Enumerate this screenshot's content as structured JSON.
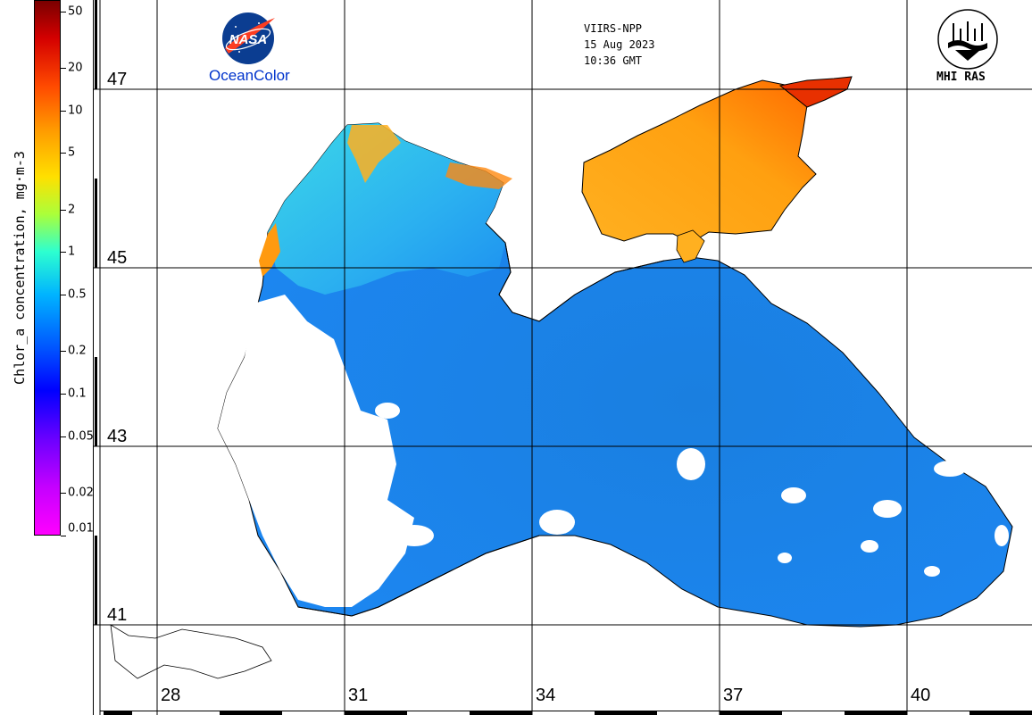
{
  "colorbar": {
    "title": "Chlor_a concentration, mg·m-3",
    "ticks": [
      {
        "label": "50",
        "value": 50
      },
      {
        "label": "20",
        "value": 20
      },
      {
        "label": "10",
        "value": 10
      },
      {
        "label": "5",
        "value": 5
      },
      {
        "label": "2",
        "value": 2
      },
      {
        "label": "1",
        "value": 1
      },
      {
        "label": "0.5",
        "value": 0.5
      },
      {
        "label": "0.2",
        "value": 0.2
      },
      {
        "label": "0.1",
        "value": 0.1
      },
      {
        "label": "0.05",
        "value": 0.05
      },
      {
        "label": "0.02",
        "value": 0.02
      },
      {
        "label": "0.01",
        "value": 0.01
      }
    ],
    "range": [
      0.01,
      60
    ],
    "scale": "log",
    "colors": [
      "#7a0000",
      "#ff0000",
      "#ff9900",
      "#ffff00",
      "#00ffff",
      "#0055ff",
      "#0000ff",
      "#ff00ff"
    ]
  },
  "header": {
    "satellite": "VIIRS-NPP",
    "date": "15 Aug 2023",
    "time": "10:36 GMT",
    "left_logo_text": "NASA",
    "left_logo_caption": "OceanColor",
    "right_logo_caption": "MHI RAS"
  },
  "grid": {
    "latitudes": [
      "47",
      "45",
      "43",
      "41"
    ],
    "longitudes": [
      "28",
      "31",
      "34",
      "37",
      "40"
    ]
  },
  "map": {
    "region": "Black Sea and Sea of Azov",
    "land_color": "#ffffff",
    "cloud_color": "#ffffff",
    "coastline_color": "#000000"
  }
}
